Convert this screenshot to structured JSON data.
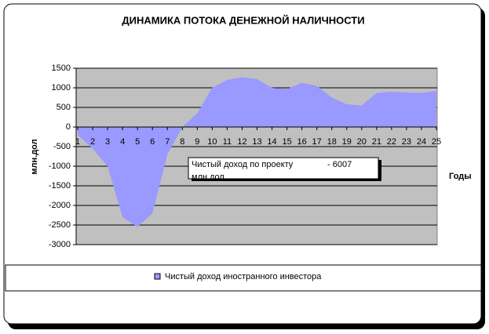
{
  "chart_data": {
    "type": "area",
    "title": "ДИНАМИКА ПОТОКА ДЕНЕЖНОЙ НАЛИЧНОСТИ",
    "y_label": "млн.дол",
    "x_label": "Годы",
    "annotation": {
      "text": "Чистый доход по проекту",
      "amount": "- 6007",
      "unit": "млн.дол"
    },
    "categories": [
      "1",
      "2",
      "3",
      "4",
      "5",
      "6",
      "7",
      "8",
      "9",
      "10",
      "11",
      "12",
      "13",
      "14",
      "15",
      "16",
      "17",
      "18",
      "19",
      "20",
      "21",
      "22",
      "23",
      "24",
      "25"
    ],
    "series": [
      {
        "name": "Чистый доход иностранного инвестора",
        "color": "#9999ff",
        "values": [
          -200,
          -550,
          -1000,
          -2300,
          -2550,
          -2200,
          -700,
          0,
          350,
          1000,
          1200,
          1270,
          1220,
          1000,
          970,
          1130,
          1050,
          750,
          580,
          550,
          870,
          900,
          880,
          870,
          920
        ]
      }
    ],
    "ylim": [
      -3000,
      1500
    ],
    "yticks": [
      -3000,
      -2500,
      -2000,
      -1500,
      -1000,
      -500,
      0,
      500,
      1000,
      1500
    ],
    "grid": true,
    "legend": "bottom"
  }
}
